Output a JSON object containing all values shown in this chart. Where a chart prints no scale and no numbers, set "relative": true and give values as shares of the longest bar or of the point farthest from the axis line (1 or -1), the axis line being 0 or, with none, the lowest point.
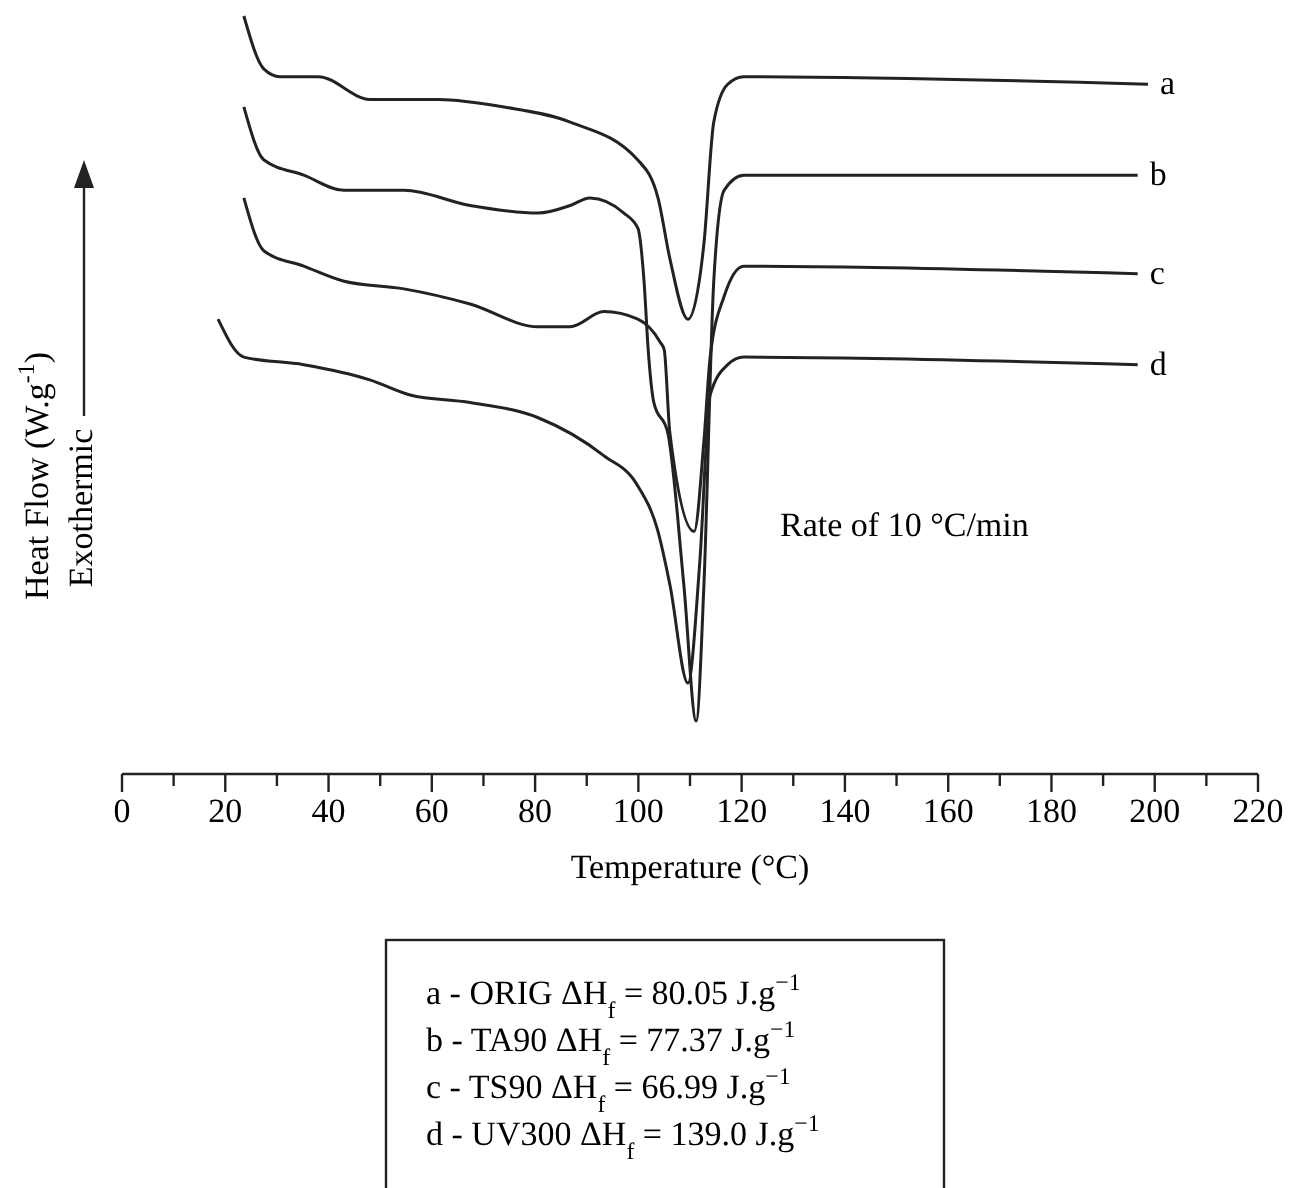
{
  "chart_data": {
    "type": "line",
    "relative": true,
    "xlabel": "Temperature (°C)",
    "ylabel": "Heat Flow (W.g$^{-1}$)",
    "xlim": [
      0,
      220
    ],
    "xticks": [
      0,
      {
        "value": 10,
        "label": null
      },
      20,
      {
        "value": 30,
        "label": null
      },
      40,
      {
        "value": 50,
        "label": null
      },
      60,
      {
        "value": 70,
        "label": null
      },
      80,
      {
        "value": 90,
        "label": null
      },
      100,
      {
        "value": 110,
        "label": null
      },
      120,
      {
        "value": 130,
        "label": null
      },
      140,
      {
        "value": 150,
        "label": null
      },
      160,
      {
        "value": 170,
        "label": null
      },
      180,
      {
        "value": 190,
        "label": null
      },
      200,
      {
        "value": 210,
        "label": null
      },
      220
    ],
    "grid": false,
    "marker": "none",
    "line_style": "solid",
    "annotations": [
      "Rate of 10 °C/min",
      "Exothermic",
      "a - ORIG ΔH$_{f}$ = 80.05 J.g$^{−1}$",
      "b - TA90 ΔH$_{f}$ = 77.37 J.g$^{−1}$",
      "c - TS90 ΔH$_{f}$ = 66.99 J.g$^{−1}$",
      "d - UV300 ΔH$_{f}$ = 139.0 J.g$^{−1}$"
    ],
    "series": [
      {
        "name": "a",
        "color": "#222222",
        "x": [
          23.6,
          27.5,
          30.6,
          38.0,
          48.0,
          61.2,
          74.0,
          86.8,
          99.9,
          103.8,
          106.1,
          109.6,
          112.7,
          114.6,
          117.3,
          120.4,
          198.7
        ],
        "values": [
          1.0,
          0.93,
          0.92,
          0.92,
          0.89,
          0.89,
          0.88,
          0.86,
          0.81,
          0.76,
          0.68,
          0.6,
          0.7,
          0.86,
          0.91,
          0.92,
          0.91
        ]
      },
      {
        "name": "b",
        "color": "#222222",
        "x": [
          23.6,
          27.5,
          35.2,
          43.0,
          54.6,
          67.4,
          80.6,
          86.8,
          90.6,
          97.2,
          99.9,
          101.1,
          101.9,
          103.0,
          105.7,
          108.8,
          111.2,
          112.7,
          114.6,
          116.6,
          120.4,
          196.7
        ],
        "values": [
          0.88,
          0.81,
          0.79,
          0.77,
          0.77,
          0.75,
          0.74,
          0.75,
          0.76,
          0.74,
          0.72,
          0.65,
          0.56,
          0.49,
          0.45,
          0.25,
          0.07,
          0.25,
          0.65,
          0.77,
          0.79,
          0.79
        ]
      },
      {
        "name": "c",
        "color": "#222222",
        "x": [
          23.6,
          27.5,
          35.2,
          43.0,
          54.6,
          67.4,
          80.6,
          86.8,
          93.3,
          99.9,
          104.2,
          105.0,
          106.1,
          110.8,
          112.7,
          113.9,
          116.6,
          120.4,
          196.7
        ],
        "values": [
          0.76,
          0.69,
          0.67,
          0.65,
          0.64,
          0.62,
          0.59,
          0.59,
          0.61,
          0.6,
          0.57,
          0.56,
          0.45,
          0.32,
          0.44,
          0.55,
          0.63,
          0.67,
          0.66
        ]
      },
      {
        "name": "d",
        "color": "#222222",
        "x": [
          18.6,
          23.6,
          35.2,
          48.0,
          55.8,
          67.4,
          80.6,
          93.3,
          99.9,
          103.8,
          106.1,
          109.6,
          111.9,
          113.9,
          117.3,
          120.4,
          196.7
        ],
        "values": [
          0.6,
          0.55,
          0.54,
          0.52,
          0.5,
          0.49,
          0.47,
          0.42,
          0.38,
          0.32,
          0.25,
          0.12,
          0.28,
          0.5,
          0.54,
          0.55,
          0.54
        ]
      }
    ]
  }
}
